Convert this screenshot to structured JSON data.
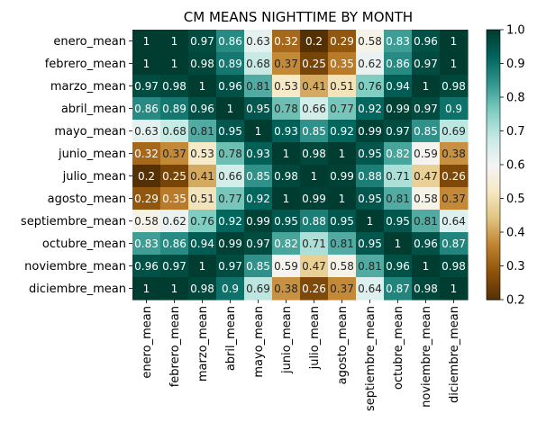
{
  "chart_data": {
    "type": "heatmap",
    "title": "CM MEANS NIGHTTIME BY MONTH",
    "xlabel": "",
    "ylabel": "",
    "row_labels": [
      "enero_mean",
      "febrero_mean",
      "marzo_mean",
      "abril_mean",
      "mayo_mean",
      "junio_mean",
      "julio_mean",
      "agosto_mean",
      "septiembre_mean",
      "octubre_mean",
      "noviembre_mean",
      "diciembre_mean"
    ],
    "col_labels": [
      "enero_mean",
      "febrero_mean",
      "marzo_mean",
      "abril_mean",
      "mayo_mean",
      "junio_mean",
      "julio_mean",
      "agosto_mean",
      "septiembre_mean",
      "octubre_mean",
      "noviembre_mean",
      "diciembre_mean"
    ],
    "values": [
      [
        1,
        1,
        0.97,
        0.86,
        0.63,
        0.32,
        0.2,
        0.29,
        0.58,
        0.83,
        0.96,
        1
      ],
      [
        1,
        1,
        0.98,
        0.89,
        0.68,
        0.37,
        0.25,
        0.35,
        0.62,
        0.86,
        0.97,
        1
      ],
      [
        0.97,
        0.98,
        1,
        0.96,
        0.81,
        0.53,
        0.41,
        0.51,
        0.76,
        0.94,
        1,
        0.98
      ],
      [
        0.86,
        0.89,
        0.96,
        1,
        0.95,
        0.78,
        0.66,
        0.77,
        0.92,
        0.99,
        0.97,
        0.9
      ],
      [
        0.63,
        0.68,
        0.81,
        0.95,
        1,
        0.93,
        0.85,
        0.92,
        0.99,
        0.97,
        0.85,
        0.69
      ],
      [
        0.32,
        0.37,
        0.53,
        0.78,
        0.93,
        1,
        0.98,
        1,
        0.95,
        0.82,
        0.59,
        0.38
      ],
      [
        0.2,
        0.25,
        0.41,
        0.66,
        0.85,
        0.98,
        1,
        0.99,
        0.88,
        0.71,
        0.47,
        0.26
      ],
      [
        0.29,
        0.35,
        0.51,
        0.77,
        0.92,
        1,
        0.99,
        1,
        0.95,
        0.81,
        0.58,
        0.37
      ],
      [
        0.58,
        0.62,
        0.76,
        0.92,
        0.99,
        0.95,
        0.88,
        0.95,
        1,
        0.95,
        0.81,
        0.64
      ],
      [
        0.83,
        0.86,
        0.94,
        0.99,
        0.97,
        0.82,
        0.71,
        0.81,
        0.95,
        1,
        0.96,
        0.87
      ],
      [
        0.96,
        0.97,
        1,
        0.97,
        0.85,
        0.59,
        0.47,
        0.58,
        0.81,
        0.96,
        1,
        0.98
      ],
      [
        1,
        1,
        0.98,
        0.9,
        0.69,
        0.38,
        0.26,
        0.37,
        0.64,
        0.87,
        0.98,
        1
      ]
    ],
    "value_labels": [
      [
        "1",
        "1",
        "0.97",
        "0.86",
        "0.63",
        "0.32",
        "0.2",
        "0.29",
        "0.58",
        "0.83",
        "0.96",
        "1"
      ],
      [
        "1",
        "1",
        "0.98",
        "0.89",
        "0.68",
        "0.37",
        "0.25",
        "0.35",
        "0.62",
        "0.86",
        "0.97",
        "1"
      ],
      [
        "0.97",
        "0.98",
        "1",
        "0.96",
        "0.81",
        "0.53",
        "0.41",
        "0.51",
        "0.76",
        "0.94",
        "1",
        "0.98"
      ],
      [
        "0.86",
        "0.89",
        "0.96",
        "1",
        "0.95",
        "0.78",
        "0.66",
        "0.77",
        "0.92",
        "0.99",
        "0.97",
        "0.9"
      ],
      [
        "0.63",
        "0.68",
        "0.81",
        "0.95",
        "1",
        "0.93",
        "0.85",
        "0.92",
        "0.99",
        "0.97",
        "0.85",
        "0.69"
      ],
      [
        "0.32",
        "0.37",
        "0.53",
        "0.78",
        "0.93",
        "1",
        "0.98",
        "1",
        "0.95",
        "0.82",
        "0.59",
        "0.38"
      ],
      [
        "0.2",
        "0.25",
        "0.41",
        "0.66",
        "0.85",
        "0.98",
        "1",
        "0.99",
        "0.88",
        "0.71",
        "0.47",
        "0.26"
      ],
      [
        "0.29",
        "0.35",
        "0.51",
        "0.77",
        "0.92",
        "1",
        "0.99",
        "1",
        "0.95",
        "0.81",
        "0.58",
        "0.37"
      ],
      [
        "0.58",
        "0.62",
        "0.76",
        "0.92",
        "0.99",
        "0.95",
        "0.88",
        "0.95",
        "1",
        "0.95",
        "0.81",
        "0.64"
      ],
      [
        "0.83",
        "0.86",
        "0.94",
        "0.99",
        "0.97",
        "0.82",
        "0.71",
        "0.81",
        "0.95",
        "1",
        "0.96",
        "0.87"
      ],
      [
        "0.96",
        "0.97",
        "1",
        "0.97",
        "0.85",
        "0.59",
        "0.47",
        "0.58",
        "0.81",
        "0.96",
        "1",
        "0.98"
      ],
      [
        "1",
        "1",
        "0.98",
        "0.9",
        "0.69",
        "0.38",
        "0.26",
        "0.37",
        "0.64",
        "0.87",
        "0.98",
        "1"
      ]
    ],
    "colorbar": {
      "range": [
        0.2,
        1.0
      ],
      "ticks": [
        0.2,
        0.3,
        0.4,
        0.5,
        0.6,
        0.7,
        0.8,
        0.9,
        1.0
      ],
      "tick_labels": [
        "0.2",
        "0.3",
        "0.4",
        "0.5",
        "0.6",
        "0.7",
        "0.8",
        "0.9",
        "1.0"
      ],
      "colormap": "BrBG"
    }
  }
}
